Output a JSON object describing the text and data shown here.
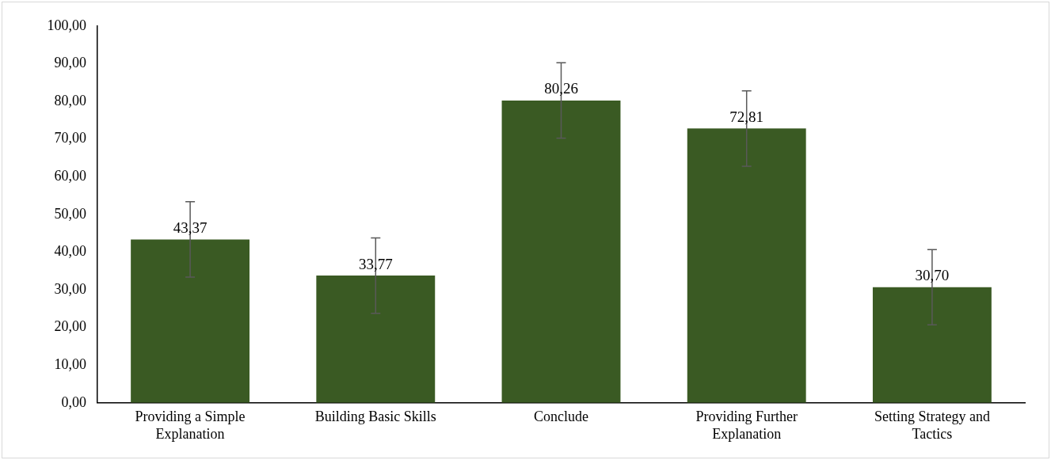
{
  "chart_data": {
    "type": "bar",
    "categories": [
      "Providing a Simple Explanation",
      "Building Basic Skills",
      "Conclude",
      "Providing Further Explanation",
      "Setting Strategy and Tactics"
    ],
    "values": [
      43.37,
      33.77,
      80.26,
      72.81,
      30.7
    ],
    "errors": [
      10,
      10,
      10,
      10,
      10
    ],
    "color": "#3a5a23",
    "value_labels": [
      "43,37",
      "33,77",
      "80,26",
      "72,81",
      "30,70"
    ],
    "ylim": [
      0,
      100
    ],
    "yticks": [
      {
        "value": 0,
        "label": "0,00"
      },
      {
        "value": 10,
        "label": "10,00"
      },
      {
        "value": 20,
        "label": "20,00"
      },
      {
        "value": 30,
        "label": "30,00"
      },
      {
        "value": 40,
        "label": "40,00"
      },
      {
        "value": 50,
        "label": "50,00"
      },
      {
        "value": 60,
        "label": "60,00"
      },
      {
        "value": 70,
        "label": "70,00"
      },
      {
        "value": 80,
        "label": "80,00"
      },
      {
        "value": 90,
        "label": "90,00"
      },
      {
        "value": 100,
        "label": "100,00"
      }
    ],
    "grid": false,
    "legend": false
  }
}
